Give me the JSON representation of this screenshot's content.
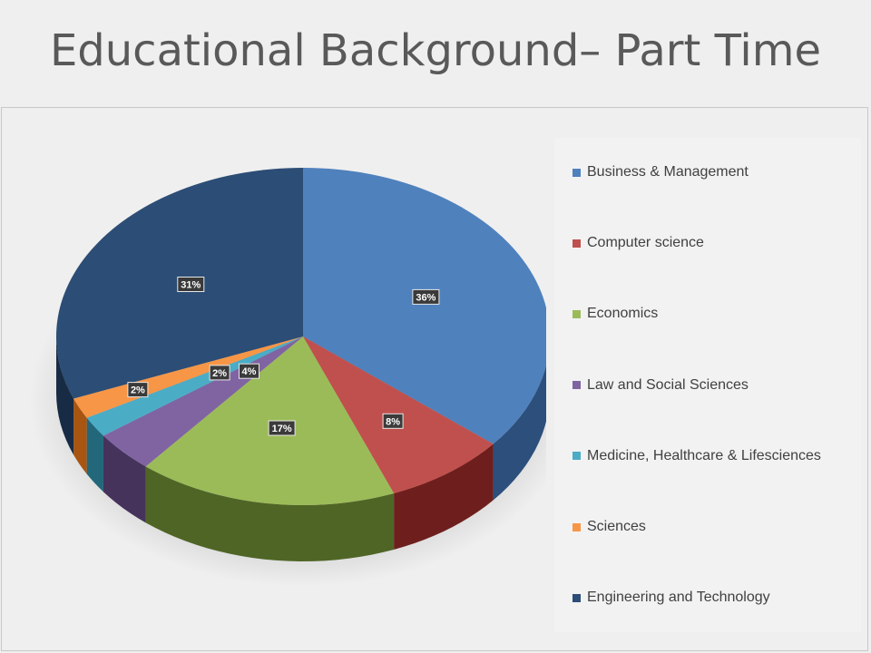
{
  "slide": {
    "title": "Educational Background– Part Time"
  },
  "chart_data": {
    "type": "pie",
    "title": "",
    "legend_position": "right",
    "slices": [
      {
        "label": "Business & Management",
        "value": 36,
        "data_label": "36%",
        "color": "#4f81bd",
        "side_color": "#2c4f7c"
      },
      {
        "label": "Computer science",
        "value": 8,
        "data_label": "8%",
        "color": "#c0504d",
        "side_color": "#6e1f1d"
      },
      {
        "label": "Economics",
        "value": 17,
        "data_label": "17%",
        "color": "#9bbb59",
        "side_color": "#4f6526"
      },
      {
        "label": "Law and Social Sciences",
        "value": 4,
        "data_label": "4%",
        "color": "#8064a2",
        "side_color": "#45335c"
      },
      {
        "label": "Medicine, Healthcare & Lifesciences",
        "value": 2,
        "data_label": "2%",
        "color": "#4bacc6",
        "side_color": "#23677a"
      },
      {
        "label": "Sciences",
        "value": 2,
        "data_label": "2%",
        "color": "#f79646",
        "side_color": "#a85512"
      },
      {
        "label": "Engineering and Technology",
        "value": 31,
        "data_label": "31%",
        "color": "#2c4d75",
        "side_color": "#182b45"
      }
    ]
  }
}
